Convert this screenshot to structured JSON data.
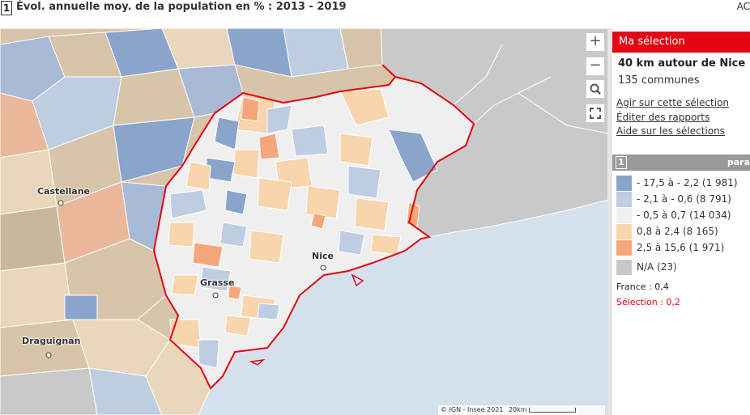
{
  "header": {
    "number": "1",
    "title": "Évol. annuelle moy. de la population en % : 2013 - 2019",
    "right_text": "AC"
  },
  "map": {
    "controls": {
      "zoom_in": "+",
      "zoom_out": "−",
      "search": "search-icon",
      "fullscreen": "fullscreen-icon"
    },
    "cities": [
      "Castellane",
      "Nice",
      "Grasse",
      "Draguignan"
    ],
    "credit": "© IGN - Insee 2021",
    "scale": "20km",
    "colors": {
      "sea": "#d4e1ec",
      "outside_land": "#c9c9c9",
      "selection_border": "#e30613"
    }
  },
  "panel": {
    "selection_title": "Ma sélection",
    "selection_name": "40 km autour de Nice",
    "selection_count": "135 communes",
    "links": [
      "Agir sur cette sélection",
      "Éditer des rapports",
      "Aide sur les sélections"
    ],
    "legend_number": "1",
    "legend_header_right": "para",
    "legend": [
      {
        "label": "- 17,5 à - 2,2 (1 981)",
        "color": "#8aa5cc"
      },
      {
        "label": "- 2,1 à - 0,6 (8 791)",
        "color": "#bfcde3"
      },
      {
        "label": "- 0,5 à 0,7 (14 034)",
        "color": "#efefef"
      },
      {
        "label": "0,8 à 2,4 (8 165)",
        "color": "#f8d5ac"
      },
      {
        "label": "2,5 à 15,6 (1 971)",
        "color": "#f4a77b"
      },
      {
        "label": "N/A (23)",
        "color": "#c8c8c8"
      }
    ],
    "france_value": "France : 0,4",
    "selection_value": "Sélection : 0,2"
  }
}
